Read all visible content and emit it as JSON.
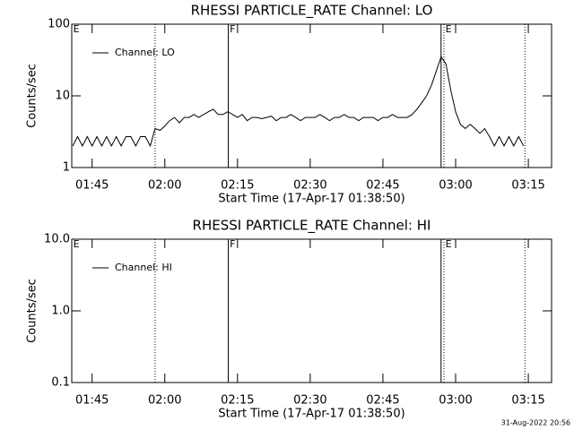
{
  "chart_data": [
    {
      "type": "line",
      "title": "RHESSI PARTICLE_RATE Channel: LO",
      "xlabel": "Start Time (17-Apr-17 01:38:50)",
      "ylabel": "Counts/sec",
      "log_y": true,
      "ylim": [
        1,
        100
      ],
      "yticks": [
        1,
        10,
        100
      ],
      "xlim": [
        100.8,
        199.8
      ],
      "xticks": [
        {
          "value": 105,
          "label": "01:45"
        },
        {
          "value": 120,
          "label": "02:00"
        },
        {
          "value": 135,
          "label": "02:15"
        },
        {
          "value": 150,
          "label": "02:30"
        },
        {
          "value": 165,
          "label": "02:45"
        },
        {
          "value": 180,
          "label": "03:00"
        },
        {
          "value": 195,
          "label": "03:15"
        }
      ],
      "legend": "upper left",
      "series": [
        {
          "name": "Channel: LO",
          "color": "#000000",
          "x": [
            101,
            102,
            103,
            104,
            105,
            106,
            107,
            108,
            109,
            110,
            111,
            112,
            113,
            114,
            115,
            116,
            117,
            118,
            119,
            120,
            121,
            122,
            123,
            124,
            125,
            126,
            127,
            128,
            129,
            130,
            131,
            132,
            133,
            134,
            135,
            136,
            137,
            138,
            139,
            140,
            141,
            142,
            143,
            144,
            145,
            146,
            147,
            148,
            149,
            150,
            151,
            152,
            153,
            154,
            155,
            156,
            157,
            158,
            159,
            160,
            161,
            162,
            163,
            164,
            165,
            166,
            167,
            168,
            169,
            170,
            171,
            172,
            173,
            174,
            175,
            176,
            177,
            178,
            179,
            180,
            181,
            182,
            183,
            184,
            185,
            186,
            187,
            188,
            189,
            190,
            191,
            192,
            193,
            194
          ],
          "values": [
            2,
            2.7,
            2,
            2.7,
            2,
            2.7,
            2,
            2.7,
            2,
            2.7,
            2,
            2.7,
            2.7,
            2,
            2.7,
            2.7,
            2,
            3.5,
            3.3,
            3.8,
            4.5,
            5,
            4.2,
            5,
            5,
            5.5,
            5,
            5.5,
            6,
            6.5,
            5.5,
            5.5,
            6,
            5.5,
            5,
            5.5,
            4.5,
            5,
            5,
            4.8,
            5,
            5.2,
            4.5,
            5,
            5,
            5.5,
            5,
            4.5,
            5,
            5,
            5,
            5.5,
            5,
            4.5,
            5,
            5,
            5.5,
            5,
            5,
            4.5,
            5,
            5,
            5,
            4.5,
            5,
            5,
            5.5,
            5,
            5,
            5,
            5.5,
            6.5,
            8,
            10,
            14,
            22,
            35,
            28,
            12,
            6,
            4,
            3.5,
            4,
            3.5,
            3,
            3.5,
            2.7,
            2,
            2.7,
            2,
            2.7,
            2,
            2.7,
            2
          ]
        }
      ],
      "vlines": [
        {
          "x": 118,
          "style": "dotted"
        },
        {
          "x": 133.1,
          "style": "solid"
        },
        {
          "x": 177,
          "style": "solid"
        },
        {
          "x": 177.6,
          "style": "dotted"
        },
        {
          "x": 194.3,
          "style": "dotted"
        }
      ],
      "annotations": [
        {
          "text": "E",
          "x": 101.1
        },
        {
          "text": "F",
          "x": 133.4
        },
        {
          "text": "E",
          "x": 177.9
        }
      ]
    },
    {
      "type": "line",
      "title": "RHESSI PARTICLE_RATE Channel: HI",
      "xlabel": "Start Time (17-Apr-17 01:38:50)",
      "ylabel": "Counts/sec",
      "log_y": true,
      "ylim": [
        0.1,
        10
      ],
      "yticks": [
        0.1,
        {
          "value": 1,
          "label": "1.0"
        },
        {
          "value": 10,
          "label": "10.0"
        }
      ],
      "xlim": [
        100.8,
        199.8
      ],
      "xticks": [
        {
          "value": 105,
          "label": "01:45"
        },
        {
          "value": 120,
          "label": "02:00"
        },
        {
          "value": 135,
          "label": "02:15"
        },
        {
          "value": 150,
          "label": "02:30"
        },
        {
          "value": 165,
          "label": "02:45"
        },
        {
          "value": 180,
          "label": "03:00"
        },
        {
          "value": 195,
          "label": "03:15"
        }
      ],
      "legend": "upper left",
      "series": [
        {
          "name": "Channel: HI",
          "color": "#000000",
          "x": [],
          "values": []
        }
      ],
      "vlines": [
        {
          "x": 118,
          "style": "dotted"
        },
        {
          "x": 133.1,
          "style": "solid"
        },
        {
          "x": 177,
          "style": "solid"
        },
        {
          "x": 177.6,
          "style": "dotted"
        },
        {
          "x": 194.3,
          "style": "dotted"
        }
      ],
      "annotations": [
        {
          "text": "E",
          "x": 101.1
        },
        {
          "text": "F",
          "x": 133.4
        },
        {
          "text": "E",
          "x": 177.9
        }
      ]
    }
  ],
  "footer": "31-Aug-2022 20:56"
}
